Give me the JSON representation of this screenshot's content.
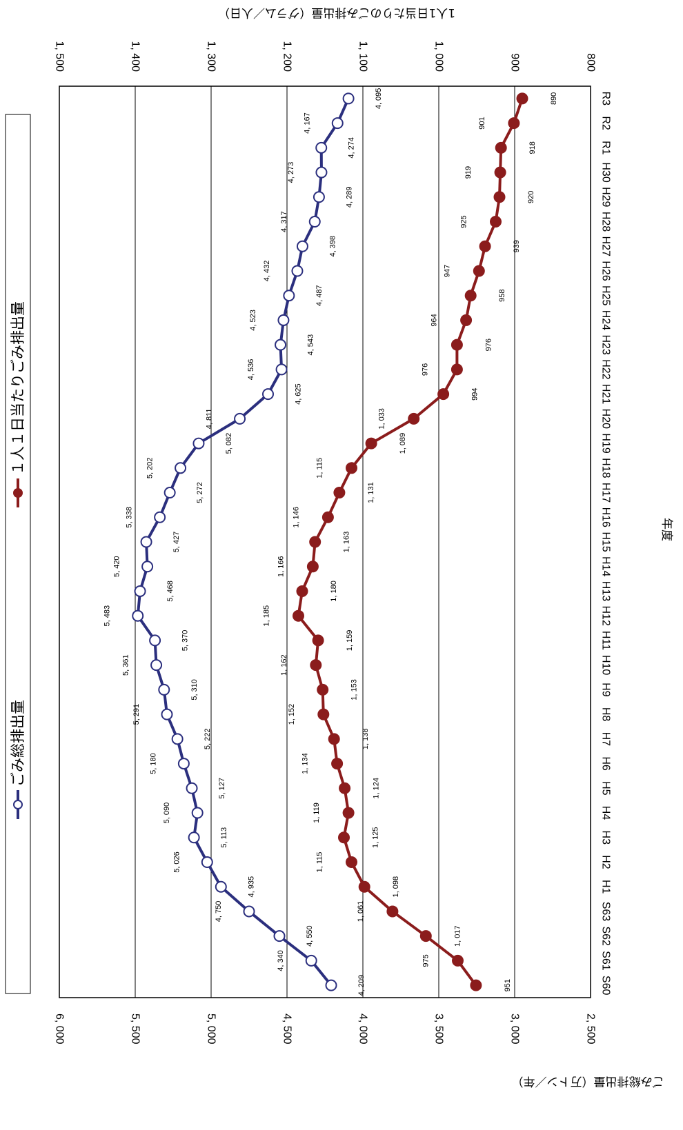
{
  "chart_data": {
    "type": "line",
    "orientation": "rotated-90-clockwise",
    "categories": [
      "S60",
      "S61",
      "S62",
      "S63",
      "H1",
      "H2",
      "H3",
      "H4",
      "H5",
      "H6",
      "H7",
      "H8",
      "H9",
      "H10",
      "H11",
      "H12",
      "H13",
      "H14",
      "H15",
      "H16",
      "H17",
      "H18",
      "H19",
      "H20",
      "H21",
      "H22",
      "H23",
      "H24",
      "H25",
      "H26",
      "H27",
      "H28",
      "H29",
      "H30",
      "R1",
      "R2",
      "R3"
    ],
    "xlabel": "年度",
    "ylabel": "ごみ総排出量（万トン／年）",
    "y2label": "1人1日当たりのごみ排出量（グラム／人日）",
    "ylim": [
      2500,
      6000
    ],
    "y2lim": [
      800,
      1500
    ],
    "yticks": [
      "2, 500",
      "3, 000",
      "3, 500",
      "4, 000",
      "4, 500",
      "5, 000",
      "5, 500",
      "6, 000"
    ],
    "y2ticks": [
      "800",
      "900",
      "1, 000",
      "1, 100",
      "1, 200",
      "1, 300",
      "1, 400",
      "1, 500"
    ],
    "grid": true,
    "legend_position": "top",
    "series": [
      {
        "name": "ごみ総排出量",
        "axis": "left",
        "color": "#2b2f7e",
        "marker": "open-circle",
        "values": [
          4209,
          4340,
          4550,
          4750,
          4935,
          5026,
          5113,
          5090,
          5127,
          5180,
          5222,
          5291,
          5310,
          5361,
          5370,
          5483,
          5468,
          5420,
          5427,
          5338,
          5272,
          5202,
          5082,
          4811,
          4625,
          4536,
          4543,
          4523,
          4487,
          4432,
          4398,
          4317,
          4289,
          4273,
          4274,
          4167,
          4095
        ],
        "labels": [
          "4, 209",
          "4, 340",
          "4, 550",
          "4, 750",
          "4, 935",
          "5, 026",
          "5, 113",
          "5, 090",
          "5, 127",
          "5, 180",
          "5, 222",
          "5, 291",
          "5, 310",
          "5, 361",
          "5, 370",
          "5, 483",
          "5, 468",
          "5, 420",
          "5, 427",
          "5, 338",
          "5, 272",
          "5, 202",
          "5, 082",
          "4, 811",
          "4, 625",
          "4, 536",
          "4, 543",
          "4, 523",
          "4, 487",
          "4, 432",
          "4, 398",
          "4, 317",
          "4, 289",
          "4, 273",
          "4, 274",
          "4, 167",
          "4, 095"
        ]
      },
      {
        "name": "１人１日当たりごみ排出量",
        "axis": "right",
        "color": "#8b1c1c",
        "marker": "filled-circle",
        "values": [
          951,
          975,
          1017,
          1061,
          1098,
          1115,
          1125,
          1119,
          1124,
          1134,
          1138,
          1152,
          1153,
          1162,
          1159,
          1185,
          1180,
          1166,
          1163,
          1146,
          1131,
          1115,
          1089,
          1033,
          994,
          976,
          976,
          964,
          958,
          947,
          939,
          925,
          920,
          919,
          918,
          901,
          890
        ],
        "labels": [
          "951",
          "975",
          "1, 017",
          "1, 061",
          "1, 098",
          "1, 115",
          "1, 125",
          "1, 119",
          "1, 124",
          "1, 134",
          "1, 138",
          "1, 152",
          "1, 153",
          "1, 162",
          "1, 159",
          "1, 185",
          "1, 180",
          "1, 166",
          "1, 163",
          "1, 146",
          "1, 131",
          "1, 115",
          "1, 089",
          "1, 033",
          "994",
          "976",
          "976",
          "964",
          "958",
          "947",
          "939",
          "925",
          "920",
          "919",
          "918",
          "901",
          "890"
        ]
      }
    ]
  }
}
